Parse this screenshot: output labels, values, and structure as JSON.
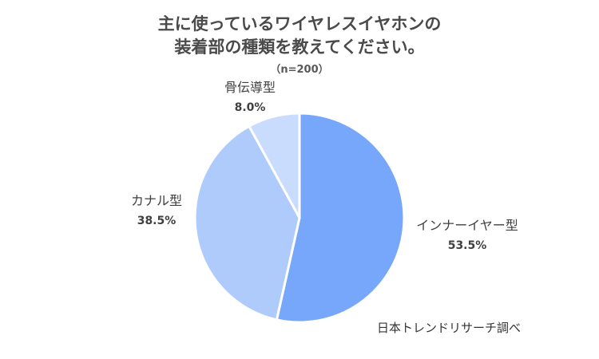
{
  "chart_data": {
    "type": "pie",
    "title_lines": [
      "主に使っているワイヤレスイヤホンの",
      "装着部の種類を教えてください。"
    ],
    "subtitle": "（n=200）",
    "slices": [
      {
        "label": "インナーイヤー型",
        "value": 53.5,
        "value_text": "53.5%",
        "color": "#77a7fb"
      },
      {
        "label": "カナル型",
        "value": 38.5,
        "value_text": "38.5%",
        "color": "#aecbfc"
      },
      {
        "label": "骨伝導型",
        "value": 8.0,
        "value_text": "8.0%",
        "color": "#c9dcfd"
      }
    ],
    "legend": "none"
  },
  "source": "日本トレンドリサーチ調べ"
}
